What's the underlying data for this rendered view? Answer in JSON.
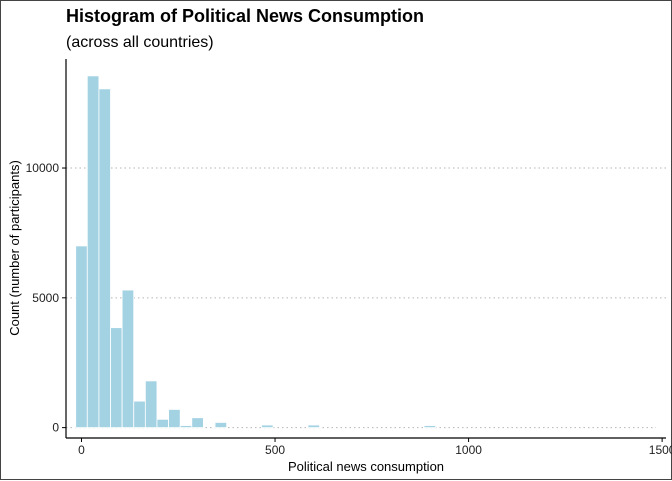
{
  "chart_data": {
    "type": "bar",
    "title": "Histogram of Political News Consumption",
    "subtitle": "(across all countries)",
    "xlabel": "Political news consumption",
    "ylabel": "Count (number of participants)",
    "xlim": [
      -40,
      1510
    ],
    "ylim": [
      -400,
      14200
    ],
    "x_ticks": [
      0,
      500,
      1000,
      1500
    ],
    "y_ticks": [
      0,
      5000,
      10000
    ],
    "grid": "horizontal dotted",
    "legend": "none",
    "bin_width": 30,
    "bins": [
      {
        "x": 0,
        "count": 7000
      },
      {
        "x": 30,
        "count": 13550
      },
      {
        "x": 60,
        "count": 13050
      },
      {
        "x": 90,
        "count": 3850
      },
      {
        "x": 120,
        "count": 5300
      },
      {
        "x": 150,
        "count": 1020
      },
      {
        "x": 180,
        "count": 1800
      },
      {
        "x": 210,
        "count": 320
      },
      {
        "x": 240,
        "count": 700
      },
      {
        "x": 270,
        "count": 80
      },
      {
        "x": 300,
        "count": 380
      },
      {
        "x": 360,
        "count": 200
      },
      {
        "x": 480,
        "count": 100
      },
      {
        "x": 600,
        "count": 100
      },
      {
        "x": 900,
        "count": 80
      },
      {
        "x": 1500,
        "count": 10
      }
    ],
    "colors": {
      "bar_fill": "#a3d2e3",
      "bar_stroke": "#ffffff",
      "grid": "#b5b5b5"
    }
  }
}
